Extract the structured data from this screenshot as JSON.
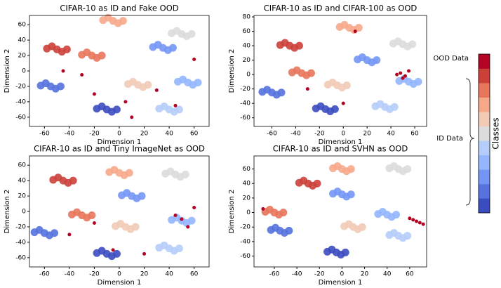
{
  "chart_data": [
    {
      "type": "scatter",
      "title": "CIFAR-10 as ID and Fake OOD",
      "xlabel": "Dimension 1",
      "ylabel": "Dimension 2",
      "xlim": [
        -72,
        72
      ],
      "ylim": [
        -72,
        72
      ],
      "xticks": [
        -60,
        -40,
        -20,
        0,
        20,
        40,
        60
      ],
      "yticks": [
        -60,
        -40,
        -20,
        0,
        20,
        40,
        60
      ],
      "series": [
        {
          "color": "#3b4cc0",
          "x": [
            -18,
            -14,
            -10,
            -6,
            -2
          ],
          "y": [
            -49,
            -46,
            -50,
            -53,
            -50
          ]
        },
        {
          "color": "#5572df",
          "x": [
            -63,
            -59,
            -55,
            -51,
            -47
          ],
          "y": [
            -19,
            -16,
            -20,
            -23,
            -20
          ]
        },
        {
          "color": "#7396f5",
          "x": [
            27,
            31,
            35,
            39,
            43
          ],
          "y": [
            31,
            34,
            30,
            27,
            30
          ]
        },
        {
          "color": "#94b6ff",
          "x": [
            47,
            51,
            55,
            59,
            63
          ],
          "y": [
            -14,
            -11,
            -15,
            -18,
            -15
          ]
        },
        {
          "color": "#b5cdfa",
          "x": [
            32,
            36,
            40,
            44,
            48
          ],
          "y": [
            -49,
            -46,
            -50,
            -53,
            -50
          ]
        },
        {
          "color": "#dddcdc",
          "x": [
            42,
            46,
            50,
            54,
            58
          ],
          "y": [
            49,
            52,
            48,
            45,
            48
          ]
        },
        {
          "color": "#f2cbb7",
          "x": [
            7,
            11,
            15,
            19,
            23
          ],
          "y": [
            -17,
            -14,
            -18,
            -21,
            -18
          ]
        },
        {
          "color": "#f7a889",
          "x": [
            -13,
            -9,
            -5,
            -1,
            3
          ],
          "y": [
            66,
            69,
            65,
            62,
            65
          ]
        },
        {
          "color": "#e8765c",
          "x": [
            -30,
            -26,
            -22,
            -18,
            -14
          ],
          "y": [
            21,
            24,
            20,
            17,
            20
          ]
        },
        {
          "color": "#cc403a",
          "x": [
            -58,
            -54,
            -50,
            -46,
            -42
          ],
          "y": [
            29,
            32,
            28,
            25,
            28
          ]
        },
        {
          "color": "#b40426",
          "x": [
            -45,
            -30,
            -20,
            5,
            30,
            45,
            60,
            10
          ],
          "y": [
            0,
            -5,
            -30,
            -40,
            -25,
            -45,
            15,
            -60
          ]
        }
      ]
    },
    {
      "type": "scatter",
      "title": "CIFAR-10 as ID and CIFAR-100 as OOD",
      "xlabel": "Dimension 1",
      "ylabel": "Dimension 2",
      "xlim": [
        -75,
        70
      ],
      "ylim": [
        -72,
        82
      ],
      "xticks": [
        -60,
        -40,
        -20,
        0,
        20,
        40,
        60
      ],
      "yticks": [
        -60,
        -40,
        -20,
        0,
        20,
        40,
        60,
        80
      ],
      "series": [
        {
          "color": "#3b4cc0",
          "x": [
            -23,
            -19,
            -15,
            -11,
            -7
          ],
          "y": [
            -47,
            -44,
            -48,
            -51,
            -48
          ]
        },
        {
          "color": "#5572df",
          "x": [
            -68,
            -64,
            -60,
            -56,
            -52
          ],
          "y": [
            -24,
            -21,
            -25,
            -28,
            -25
          ]
        },
        {
          "color": "#7396f5",
          "x": [
            12,
            16,
            20,
            24,
            28
          ],
          "y": [
            21,
            24,
            20,
            17,
            20
          ]
        },
        {
          "color": "#94b6ff",
          "x": [
            47,
            51,
            55,
            59,
            63
          ],
          "y": [
            -9,
            -6,
            -10,
            -13,
            -10
          ]
        },
        {
          "color": "#b5cdfa",
          "x": [
            27,
            31,
            35,
            39,
            43
          ],
          "y": [
            -44,
            -41,
            -45,
            -48,
            -45
          ]
        },
        {
          "color": "#dddcdc",
          "x": [
            42,
            46,
            50,
            54,
            58
          ],
          "y": [
            43,
            46,
            42,
            39,
            42
          ]
        },
        {
          "color": "#f2cbb7",
          "x": [
            -13,
            -9,
            -5,
            -1,
            3
          ],
          "y": [
            -14,
            -11,
            -15,
            -18,
            -15
          ]
        },
        {
          "color": "#f7a889",
          "x": [
            -3,
            1,
            5,
            9,
            13
          ],
          "y": [
            66,
            69,
            65,
            62,
            65
          ]
        },
        {
          "color": "#e8765c",
          "x": [
            -43,
            -39,
            -35,
            -31,
            -27
          ],
          "y": [
            3,
            6,
            2,
            -1,
            2
          ]
        },
        {
          "color": "#cc403a",
          "x": [
            -53,
            -49,
            -45,
            -41,
            -37
          ],
          "y": [
            41,
            44,
            40,
            37,
            40
          ]
        },
        {
          "color": "#b40426",
          "x": [
            45,
            48,
            52,
            55,
            50,
            -30,
            10,
            0
          ],
          "y": [
            0,
            2,
            -2,
            5,
            -5,
            -20,
            60,
            -40
          ]
        }
      ]
    },
    {
      "type": "scatter",
      "title": "CIFAR-10 as ID and Tiny ImageNet as OOD",
      "xlabel": "Dimension 1",
      "ylabel": "Dimension 2",
      "xlim": [
        -72,
        72
      ],
      "ylim": [
        -72,
        72
      ],
      "xticks": [
        -60,
        -40,
        -20,
        0,
        20,
        40,
        60
      ],
      "yticks": [
        -60,
        -40,
        -20,
        0,
        20,
        40,
        60
      ],
      "series": [
        {
          "color": "#3b4cc0",
          "x": [
            -18,
            -14,
            -10,
            -6,
            -2
          ],
          "y": [
            -54,
            -51,
            -55,
            -58,
            -55
          ]
        },
        {
          "color": "#5572df",
          "x": [
            -68,
            -64,
            -60,
            -56,
            -52
          ],
          "y": [
            -27,
            -24,
            -28,
            -31,
            -28
          ]
        },
        {
          "color": "#7396f5",
          "x": [
            2,
            6,
            10,
            14,
            18
          ],
          "y": [
            21,
            24,
            20,
            17,
            20
          ]
        },
        {
          "color": "#94b6ff",
          "x": [
            42,
            46,
            50,
            54,
            58
          ],
          "y": [
            -11,
            -8,
            -12,
            -15,
            -12
          ]
        },
        {
          "color": "#b5cdfa",
          "x": [
            32,
            36,
            40,
            44,
            48
          ],
          "y": [
            -47,
            -44,
            -48,
            -51,
            -48
          ]
        },
        {
          "color": "#dddcdc",
          "x": [
            37,
            41,
            45,
            49,
            53
          ],
          "y": [
            49,
            52,
            48,
            45,
            48
          ]
        },
        {
          "color": "#f2cbb7",
          "x": [
            -3,
            1,
            5,
            9,
            13
          ],
          "y": [
            -19,
            -16,
            -20,
            -23,
            -20
          ]
        },
        {
          "color": "#f7a889",
          "x": [
            -8,
            -4,
            0,
            4,
            8
          ],
          "y": [
            51,
            54,
            50,
            47,
            50
          ]
        },
        {
          "color": "#e8765c",
          "x": [
            -38,
            -34,
            -30,
            -26,
            -22
          ],
          "y": [
            -4,
            -1,
            -5,
            -8,
            -5
          ]
        },
        {
          "color": "#cc403a",
          "x": [
            -53,
            -49,
            -45,
            -41,
            -37
          ],
          "y": [
            41,
            44,
            40,
            37,
            40
          ]
        },
        {
          "color": "#b40426",
          "x": [
            -40,
            -20,
            20,
            45,
            50,
            55,
            -5,
            60
          ],
          "y": [
            -30,
            -15,
            -55,
            -5,
            -10,
            -20,
            -50,
            5
          ]
        }
      ]
    },
    {
      "type": "scatter",
      "title": "CIFAR-10 as ID and SVHN as OOD",
      "xlabel": "Dimension 1",
      "ylabel": "Dimension 2",
      "xlim": [
        -78,
        75
      ],
      "ylim": [
        -75,
        78
      ],
      "xticks": [
        -60,
        -40,
        -20,
        0,
        20,
        40,
        60
      ],
      "yticks": [
        -60,
        -40,
        -20,
        0,
        20,
        40,
        60
      ],
      "series": [
        {
          "color": "#3b4cc0",
          "x": [
            -13,
            -9,
            -5,
            -1,
            3
          ],
          "y": [
            -54,
            -51,
            -55,
            -58,
            -55
          ]
        },
        {
          "color": "#5572df",
          "x": [
            -63,
            -59,
            -55,
            -51,
            -47
          ],
          "y": [
            -24,
            -21,
            -25,
            -28,
            -25
          ]
        },
        {
          "color": "#7396f5",
          "x": [
            -8,
            -4,
            0,
            4,
            8
          ],
          "y": [
            26,
            29,
            25,
            22,
            25
          ]
        },
        {
          "color": "#94b6ff",
          "x": [
            32,
            36,
            40,
            44,
            48
          ],
          "y": [
            -2,
            1,
            -3,
            -6,
            -3
          ]
        },
        {
          "color": "#b5cdfa",
          "x": [
            42,
            46,
            50,
            54,
            58
          ],
          "y": [
            -31,
            -28,
            -32,
            -35,
            -32
          ]
        },
        {
          "color": "#dddcdc",
          "x": [
            42,
            46,
            50,
            54,
            58
          ],
          "y": [
            61,
            64,
            60,
            57,
            60
          ]
        },
        {
          "color": "#f2cbb7",
          "x": [
            2,
            6,
            10,
            14,
            18
          ],
          "y": [
            -19,
            -16,
            -20,
            -23,
            -20
          ]
        },
        {
          "color": "#f7a889",
          "x": [
            -8,
            -4,
            0,
            4,
            8
          ],
          "y": [
            61,
            64,
            60,
            57,
            60
          ]
        },
        {
          "color": "#e8765c",
          "x": [
            -68,
            -64,
            -60,
            -56,
            -52
          ],
          "y": [
            1,
            4,
            0,
            -3,
            0
          ]
        },
        {
          "color": "#cc403a",
          "x": [
            -38,
            -34,
            -30,
            -26,
            -22
          ],
          "y": [
            41,
            44,
            40,
            37,
            40
          ]
        },
        {
          "color": "#b40426",
          "x": [
            60,
            63,
            66,
            69,
            72,
            -70
          ],
          "y": [
            -8,
            -10,
            -12,
            -14,
            -16,
            5
          ]
        }
      ]
    }
  ],
  "colorbar": {
    "label": "Classes",
    "top_label": "OOD Data",
    "middle_label": "ID Data",
    "colors": [
      "#3b4cc0",
      "#5572df",
      "#7396f5",
      "#94b6ff",
      "#b5cdfa",
      "#dddcdc",
      "#f2cbb7",
      "#f7a889",
      "#e8765c",
      "#cc403a",
      "#b40426"
    ]
  }
}
